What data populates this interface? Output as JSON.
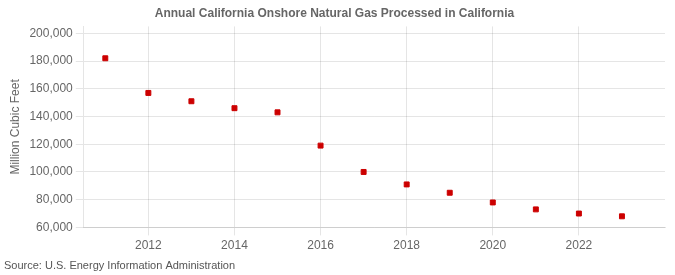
{
  "chart_data": {
    "type": "scatter",
    "title": "Annual California Onshore Natural Gas Processed in California",
    "y_label": "Million Cubic Feet",
    "annotation": "Source: U.S. Energy Information Administration",
    "x": [
      2011,
      2012,
      2013,
      2014,
      2015,
      2016,
      2017,
      2018,
      2019,
      2020,
      2021,
      2022,
      2023
    ],
    "values": [
      182000,
      157000,
      151000,
      146000,
      143000,
      119000,
      100000,
      91000,
      85000,
      78000,
      73000,
      70000,
      68000
    ],
    "color": "#cc0000",
    "marker": "square",
    "xlim": [
      2010.5,
      2024.0
    ],
    "xticks": [
      2012,
      2014,
      2016,
      2018,
      2020,
      2022
    ],
    "ylim": [
      60000,
      205000
    ],
    "yticks": [
      {
        "value": 60000,
        "label": "60,000"
      },
      {
        "value": 80000,
        "label": "80,000"
      },
      {
        "value": 100000,
        "label": "100,000"
      },
      {
        "value": 120000,
        "label": "120,000"
      },
      {
        "value": 140000,
        "label": "140,000"
      },
      {
        "value": 160000,
        "label": "160,000"
      },
      {
        "value": 180000,
        "label": "180,000"
      },
      {
        "value": 200000,
        "label": "200,000"
      }
    ],
    "grid": true
  }
}
